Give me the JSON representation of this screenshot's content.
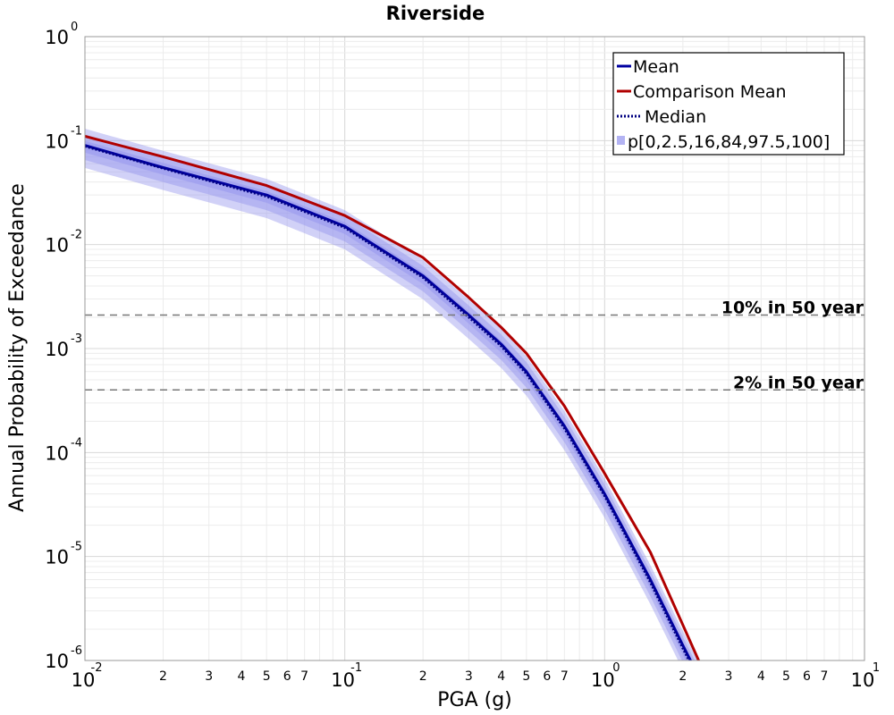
{
  "chart_data": {
    "type": "line",
    "title": "Riverside",
    "xlabel": "PGA (g)",
    "ylabel": "Annual Probability of Exceedance",
    "x_scale": "log",
    "y_scale": "log",
    "xlim": [
      0.01,
      10
    ],
    "ylim": [
      1e-06,
      1
    ],
    "grid": true,
    "legend_position": "top-right",
    "x_major_ticks": [
      {
        "value": 0.01,
        "base": "10",
        "exp": "-2"
      },
      {
        "value": 0.1,
        "base": "10",
        "exp": "-1"
      },
      {
        "value": 1,
        "base": "10",
        "exp": "0"
      },
      {
        "value": 10,
        "base": "10",
        "exp": "1"
      }
    ],
    "y_major_ticks": [
      {
        "value": 1,
        "base": "10",
        "exp": "0"
      },
      {
        "value": 0.1,
        "base": "10",
        "exp": "-1"
      },
      {
        "value": 0.01,
        "base": "10",
        "exp": "-2"
      },
      {
        "value": 0.001,
        "base": "10",
        "exp": "-3"
      },
      {
        "value": 0.0001,
        "base": "10",
        "exp": "-4"
      },
      {
        "value": 1e-05,
        "base": "10",
        "exp": "-5"
      },
      {
        "value": 1e-06,
        "base": "10",
        "exp": "-6"
      }
    ],
    "x_minor_labels": [
      "2",
      "3",
      "4",
      "5",
      "6",
      "7"
    ],
    "x": [
      0.01,
      0.02,
      0.05,
      0.1,
      0.2,
      0.3,
      0.4,
      0.5,
      0.7,
      1.0,
      1.5,
      2.0,
      2.3
    ],
    "series": [
      {
        "name": "Mean",
        "color": "#0000a0",
        "style": "solid",
        "values": [
          0.09,
          0.055,
          0.03,
          0.015,
          0.005,
          0.0021,
          0.0011,
          0.0006,
          0.00018,
          4e-05,
          6e-06,
          1.4e-06,
          7e-07
        ]
      },
      {
        "name": "Comparison Mean",
        "color": "#b00000",
        "style": "solid",
        "values": [
          0.11,
          0.07,
          0.037,
          0.019,
          0.0075,
          0.0031,
          0.0016,
          0.0009,
          0.00028,
          6.3e-05,
          1.1e-05,
          2.2e-06,
          1e-06
        ]
      },
      {
        "name": "Median",
        "color": "#000080",
        "style": "dotted",
        "values": [
          0.088,
          0.054,
          0.029,
          0.0145,
          0.0048,
          0.002,
          0.00105,
          0.00057,
          0.00017,
          3.8e-05,
          5.6e-06,
          1.3e-06,
          6.5e-07
        ]
      }
    ],
    "bands": {
      "name": "p[0,2.5,16,84,97.5,100]",
      "color": "#9999ee",
      "inner_factor": [
        0.87,
        1.13
      ],
      "middle_factor": [
        0.74,
        1.3
      ],
      "outer_factor": [
        0.62,
        1.48
      ]
    },
    "reference_lines": [
      {
        "label": "10% in 50 year",
        "y": 0.0021
      },
      {
        "label": "2% in 50 year",
        "y": 0.0004
      }
    ]
  }
}
